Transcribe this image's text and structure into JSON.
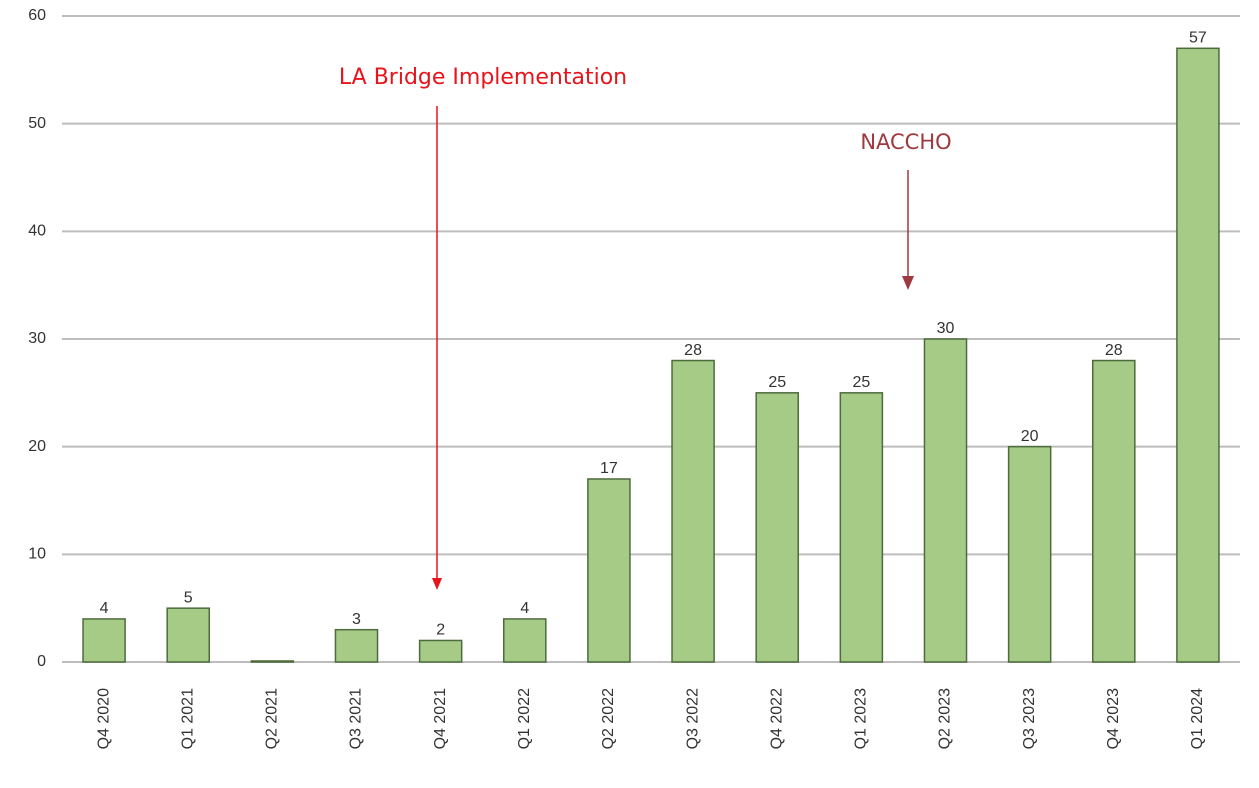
{
  "chart_data": {
    "type": "bar",
    "categories": [
      "Q4 2020",
      "Q1 2021",
      "Q2 2021",
      "Q3 2021",
      "Q4 2021",
      "Q1 2022",
      "Q2 2022",
      "Q3 2022",
      "Q4 2022",
      "Q1 2023",
      "Q2 2023",
      "Q3 2023",
      "Q4 2023",
      "Q1 2024"
    ],
    "values": [
      4,
      5,
      0,
      3,
      2,
      4,
      17,
      28,
      25,
      25,
      30,
      20,
      28,
      57
    ],
    "value_labels": [
      "4",
      "5",
      null,
      "3",
      "2",
      "4",
      "17",
      "28",
      "25",
      "25",
      "30",
      "20",
      "28",
      "57"
    ],
    "color": "#a6cb86",
    "edge_color": "#4d6b3c",
    "ylim": [
      0,
      60
    ],
    "yticks": [
      0,
      10,
      20,
      30,
      40,
      50,
      60
    ],
    "grid": true,
    "annotations": [
      {
        "text": "LA Bridge Implementation",
        "color": "#e8141b"
      },
      {
        "text": "NACCHO",
        "color": "#a0393f"
      }
    ]
  }
}
